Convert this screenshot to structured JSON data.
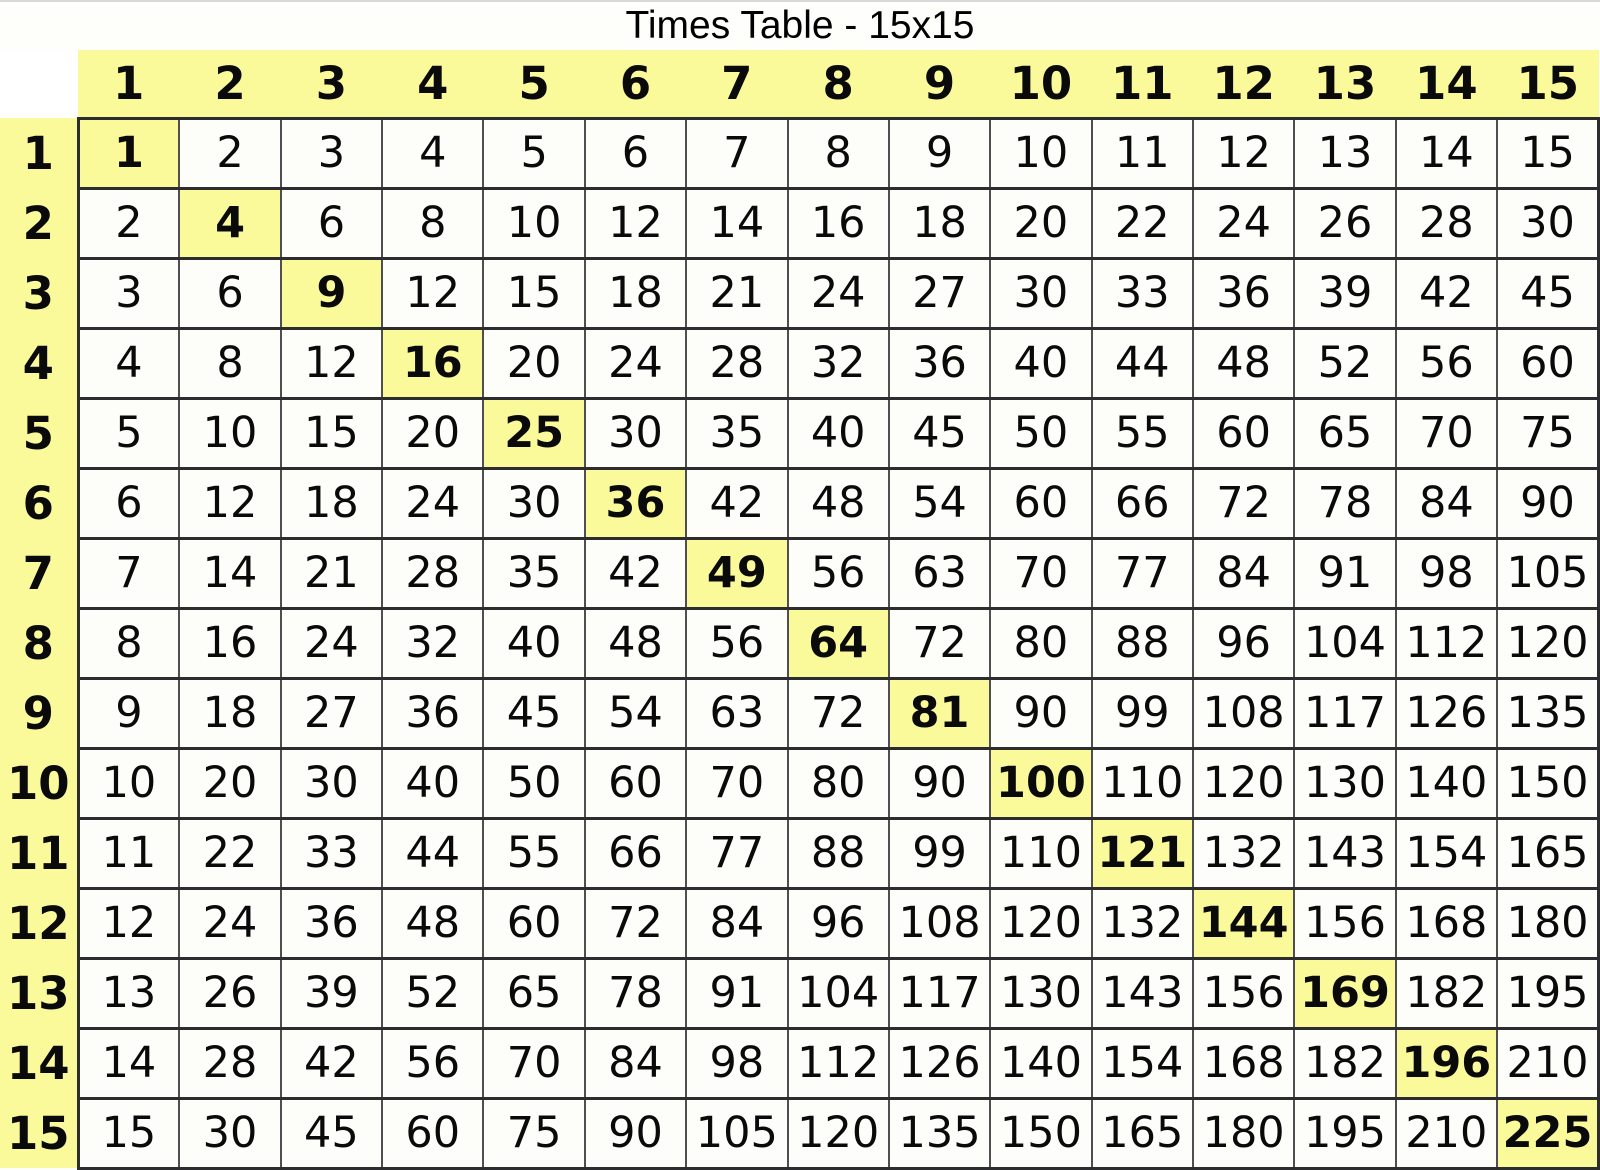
{
  "page": {
    "title": "Times Table - 15x15"
  },
  "colors": {
    "header_bg": "#fafa9b",
    "diagonal_bg": "#fafa9b",
    "cell_bg": "#fdfdf9",
    "page_bg": "#ffffff",
    "grid_line": "#4f4f52",
    "grid_line_heavy": "#2d2d30",
    "text": "#0a0a0a"
  },
  "chart_data": {
    "type": "table",
    "title": "Times Table - 15x15",
    "columns": [
      1,
      2,
      3,
      4,
      5,
      6,
      7,
      8,
      9,
      10,
      11,
      12,
      13,
      14,
      15
    ],
    "row_headers": [
      1,
      2,
      3,
      4,
      5,
      6,
      7,
      8,
      9,
      10,
      11,
      12,
      13,
      14,
      15
    ],
    "values": [
      [
        1,
        2,
        3,
        4,
        5,
        6,
        7,
        8,
        9,
        10,
        11,
        12,
        13,
        14,
        15
      ],
      [
        2,
        4,
        6,
        8,
        10,
        12,
        14,
        16,
        18,
        20,
        22,
        24,
        26,
        28,
        30
      ],
      [
        3,
        6,
        9,
        12,
        15,
        18,
        21,
        24,
        27,
        30,
        33,
        36,
        39,
        42,
        45
      ],
      [
        4,
        8,
        12,
        16,
        20,
        24,
        28,
        32,
        36,
        40,
        44,
        48,
        52,
        56,
        60
      ],
      [
        5,
        10,
        15,
        20,
        25,
        30,
        35,
        40,
        45,
        50,
        55,
        60,
        65,
        70,
        75
      ],
      [
        6,
        12,
        18,
        24,
        30,
        36,
        42,
        48,
        54,
        60,
        66,
        72,
        78,
        84,
        90
      ],
      [
        7,
        14,
        21,
        28,
        35,
        42,
        49,
        56,
        63,
        70,
        77,
        84,
        91,
        98,
        105
      ],
      [
        8,
        16,
        24,
        32,
        40,
        48,
        56,
        64,
        72,
        80,
        88,
        96,
        104,
        112,
        120
      ],
      [
        9,
        18,
        27,
        36,
        45,
        54,
        63,
        72,
        81,
        90,
        99,
        108,
        117,
        126,
        135
      ],
      [
        10,
        20,
        30,
        40,
        50,
        60,
        70,
        80,
        90,
        100,
        110,
        120,
        130,
        140,
        150
      ],
      [
        11,
        22,
        33,
        44,
        55,
        66,
        77,
        88,
        99,
        110,
        121,
        132,
        143,
        154,
        165
      ],
      [
        12,
        24,
        36,
        48,
        60,
        72,
        84,
        96,
        108,
        120,
        132,
        144,
        156,
        168,
        180
      ],
      [
        13,
        26,
        39,
        52,
        65,
        78,
        91,
        104,
        117,
        130,
        143,
        156,
        169,
        182,
        195
      ],
      [
        14,
        28,
        42,
        56,
        70,
        84,
        98,
        112,
        126,
        140,
        154,
        168,
        182,
        196,
        210
      ],
      [
        15,
        30,
        45,
        60,
        75,
        90,
        105,
        120,
        135,
        150,
        165,
        180,
        195,
        210,
        225
      ]
    ],
    "highlight_note": "Diagonal perfect-square cells (1,4,9,...,225) have yellow background and bold text; header row and header column are yellow and bold",
    "legend_position": "none",
    "grid": true
  }
}
